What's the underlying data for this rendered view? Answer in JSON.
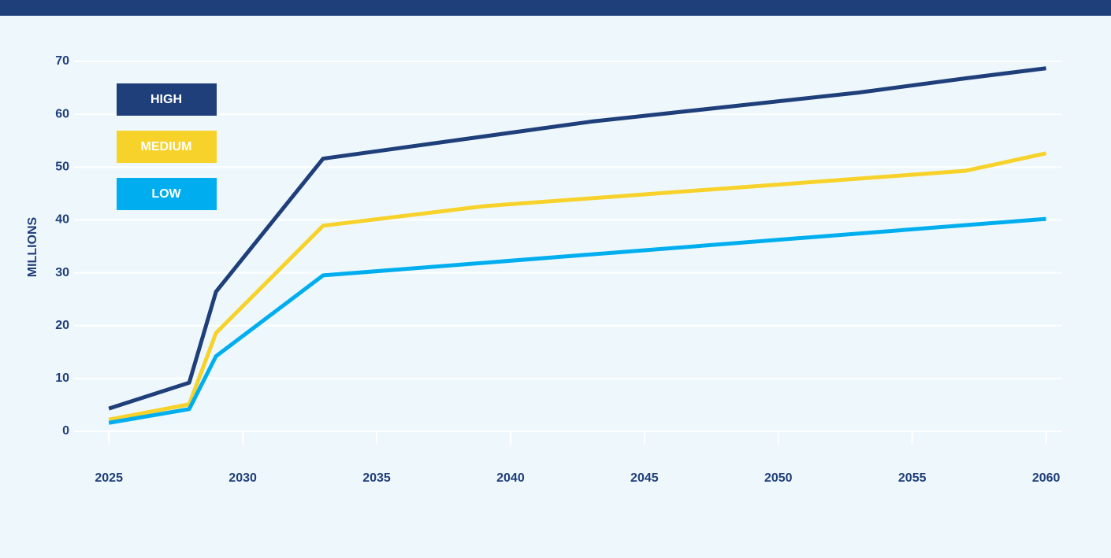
{
  "chart_data": {
    "type": "line",
    "y_label": "MILLIONS",
    "xlim": [
      2023.7,
      2060.6
    ],
    "xticks": [
      2025,
      2030,
      2035,
      2040,
      2045,
      2050,
      2055,
      2060
    ],
    "ylim": [
      0,
      70
    ],
    "yticks": [
      0,
      10,
      20,
      30,
      40,
      50,
      60,
      70
    ],
    "grid": true,
    "series": [
      {
        "name": "HIGH",
        "color": "#1f3f7a",
        "x": [
          2025,
          2028,
          2029,
          2033,
          2043,
          2053,
          2057,
          2060
        ],
        "values": [
          4.3,
          9.2,
          26.4,
          51.6,
          58.6,
          64.1,
          66.8,
          68.7
        ]
      },
      {
        "name": "MEDIUM",
        "color": "#f7d22a",
        "x": [
          2025,
          2028,
          2029,
          2033,
          2039,
          2057,
          2060
        ],
        "values": [
          2.2,
          5.1,
          18.6,
          38.9,
          42.6,
          49.3,
          52.6
        ]
      },
      {
        "name": "LOW",
        "color": "#00aeef",
        "x": [
          2025,
          2028,
          2029,
          2033,
          2060
        ],
        "values": [
          1.6,
          4.2,
          14.2,
          29.5,
          40.2
        ]
      }
    ]
  }
}
